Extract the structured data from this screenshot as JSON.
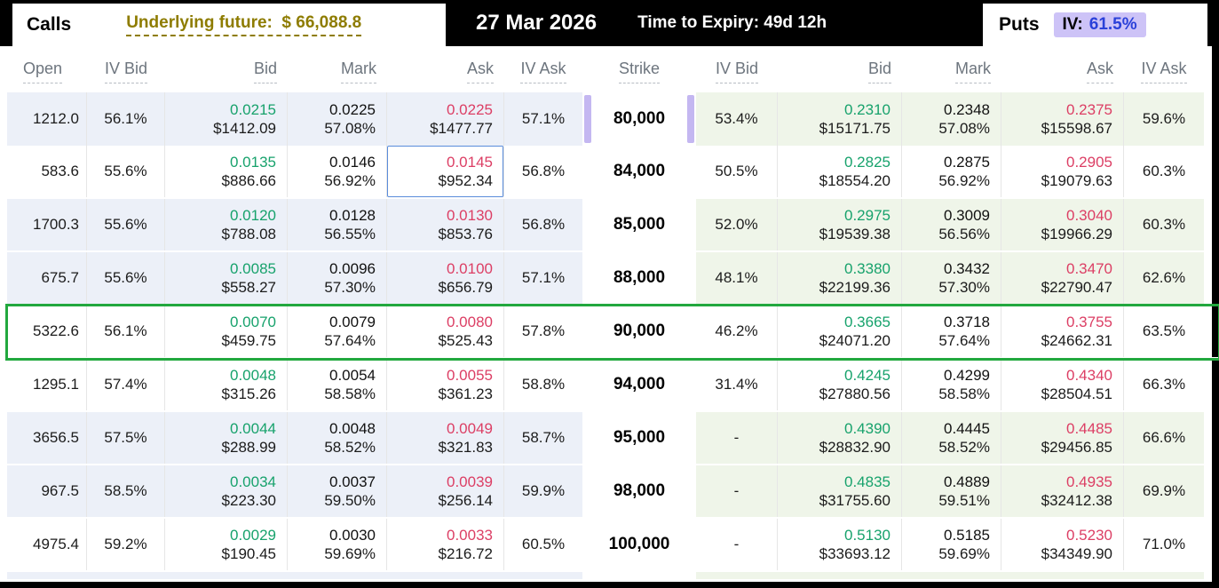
{
  "header": {
    "calls_label": "Calls",
    "underlying_future": "Underlying future:  $ 66,088.8",
    "date": "27 Mar 2026",
    "time_to_expiry": "Time to Expiry: 49d 12h",
    "puts_label": "Puts",
    "iv_label": "IV:",
    "iv_value": "61.5%"
  },
  "columns": {
    "calls": [
      "Open",
      "IV Bid",
      "Bid",
      "Mark",
      "Ask",
      "IV Ask"
    ],
    "strike": "Strike",
    "puts": [
      "IV Bid",
      "Bid",
      "Mark",
      "Ask",
      "IV Ask"
    ]
  },
  "colors": {
    "bid_green": "#17a26c",
    "ask_red": "#dc3e64",
    "iv_blue": "#2b41d9",
    "underlying_olive": "#8e7c00",
    "selected_row_green": "#22a83e",
    "selected_cell_blue": "#5a8cdb",
    "calls_row_tint": "#ecf0f8",
    "puts_row_tint": "#eff5e9",
    "iv_chip_lavender": "#cdc3f7",
    "strike_indicator_purple": "#c4b7f1"
  },
  "rows": [
    {
      "strike": "80,000",
      "shaded": true,
      "selected": false,
      "strike_indicator": true,
      "calls": {
        "open": "1212.0",
        "iv_bid": "56.1%",
        "bid": "0.0215",
        "bid_usd": "$1412.09",
        "mark": "0.0225",
        "mark_iv": "57.08%",
        "ask": "0.0225",
        "ask_usd": "$1477.77",
        "iv_ask": "57.1%",
        "ask_selected": false
      },
      "puts": {
        "iv_bid": "53.4%",
        "bid": "0.2310",
        "bid_usd": "$15171.75",
        "mark": "0.2348",
        "mark_iv": "57.08%",
        "ask": "0.2375",
        "ask_usd": "$15598.67",
        "iv_ask": "59.6%"
      }
    },
    {
      "strike": "84,000",
      "shaded": false,
      "selected": false,
      "strike_indicator": false,
      "calls": {
        "open": "583.6",
        "iv_bid": "55.6%",
        "bid": "0.0135",
        "bid_usd": "$886.66",
        "mark": "0.0146",
        "mark_iv": "56.92%",
        "ask": "0.0145",
        "ask_usd": "$952.34",
        "iv_ask": "56.8%",
        "ask_selected": true
      },
      "puts": {
        "iv_bid": "50.5%",
        "bid": "0.2825",
        "bid_usd": "$18554.20",
        "mark": "0.2875",
        "mark_iv": "56.92%",
        "ask": "0.2905",
        "ask_usd": "$19079.63",
        "iv_ask": "60.3%"
      }
    },
    {
      "strike": "85,000",
      "shaded": true,
      "selected": false,
      "strike_indicator": false,
      "calls": {
        "open": "1700.3",
        "iv_bid": "55.6%",
        "bid": "0.0120",
        "bid_usd": "$788.08",
        "mark": "0.0128",
        "mark_iv": "56.55%",
        "ask": "0.0130",
        "ask_usd": "$853.76",
        "iv_ask": "56.8%",
        "ask_selected": false
      },
      "puts": {
        "iv_bid": "52.0%",
        "bid": "0.2975",
        "bid_usd": "$19539.38",
        "mark": "0.3009",
        "mark_iv": "56.56%",
        "ask": "0.3040",
        "ask_usd": "$19966.29",
        "iv_ask": "60.3%"
      }
    },
    {
      "strike": "88,000",
      "shaded": true,
      "selected": false,
      "strike_indicator": false,
      "calls": {
        "open": "675.7",
        "iv_bid": "55.6%",
        "bid": "0.0085",
        "bid_usd": "$558.27",
        "mark": "0.0096",
        "mark_iv": "57.30%",
        "ask": "0.0100",
        "ask_usd": "$656.79",
        "iv_ask": "57.1%",
        "ask_selected": false
      },
      "puts": {
        "iv_bid": "48.1%",
        "bid": "0.3380",
        "bid_usd": "$22199.36",
        "mark": "0.3432",
        "mark_iv": "57.30%",
        "ask": "0.3470",
        "ask_usd": "$22790.47",
        "iv_ask": "62.6%"
      }
    },
    {
      "strike": "90,000",
      "shaded": false,
      "selected": true,
      "strike_indicator": false,
      "calls": {
        "open": "5322.6",
        "iv_bid": "56.1%",
        "bid": "0.0070",
        "bid_usd": "$459.75",
        "mark": "0.0079",
        "mark_iv": "57.64%",
        "ask": "0.0080",
        "ask_usd": "$525.43",
        "iv_ask": "57.8%",
        "ask_selected": false
      },
      "puts": {
        "iv_bid": "46.2%",
        "bid": "0.3665",
        "bid_usd": "$24071.20",
        "mark": "0.3718",
        "mark_iv": "57.64%",
        "ask": "0.3755",
        "ask_usd": "$24662.31",
        "iv_ask": "63.5%"
      }
    },
    {
      "strike": "94,000",
      "shaded": false,
      "selected": false,
      "strike_indicator": false,
      "calls": {
        "open": "1295.1",
        "iv_bid": "57.4%",
        "bid": "0.0048",
        "bid_usd": "$315.26",
        "mark": "0.0054",
        "mark_iv": "58.58%",
        "ask": "0.0055",
        "ask_usd": "$361.23",
        "iv_ask": "58.8%",
        "ask_selected": false
      },
      "puts": {
        "iv_bid": "31.4%",
        "bid": "0.4245",
        "bid_usd": "$27880.56",
        "mark": "0.4299",
        "mark_iv": "58.58%",
        "ask": "0.4340",
        "ask_usd": "$28504.51",
        "iv_ask": "66.3%"
      }
    },
    {
      "strike": "95,000",
      "shaded": true,
      "selected": false,
      "strike_indicator": false,
      "calls": {
        "open": "3656.5",
        "iv_bid": "57.5%",
        "bid": "0.0044",
        "bid_usd": "$288.99",
        "mark": "0.0048",
        "mark_iv": "58.52%",
        "ask": "0.0049",
        "ask_usd": "$321.83",
        "iv_ask": "58.7%",
        "ask_selected": false
      },
      "puts": {
        "iv_bid": "-",
        "bid": "0.4390",
        "bid_usd": "$28832.90",
        "mark": "0.4445",
        "mark_iv": "58.52%",
        "ask": "0.4485",
        "ask_usd": "$29456.85",
        "iv_ask": "66.6%"
      }
    },
    {
      "strike": "98,000",
      "shaded": true,
      "selected": false,
      "strike_indicator": false,
      "calls": {
        "open": "967.5",
        "iv_bid": "58.5%",
        "bid": "0.0034",
        "bid_usd": "$223.30",
        "mark": "0.0037",
        "mark_iv": "59.50%",
        "ask": "0.0039",
        "ask_usd": "$256.14",
        "iv_ask": "59.9%",
        "ask_selected": false
      },
      "puts": {
        "iv_bid": "-",
        "bid": "0.4835",
        "bid_usd": "$31755.60",
        "mark": "0.4889",
        "mark_iv": "59.51%",
        "ask": "0.4935",
        "ask_usd": "$32412.38",
        "iv_ask": "69.9%"
      }
    },
    {
      "strike": "100,000",
      "shaded": false,
      "selected": false,
      "strike_indicator": false,
      "calls": {
        "open": "4975.4",
        "iv_bid": "59.2%",
        "bid": "0.0029",
        "bid_usd": "$190.45",
        "mark": "0.0030",
        "mark_iv": "59.69%",
        "ask": "0.0033",
        "ask_usd": "$216.72",
        "iv_ask": "60.5%",
        "ask_selected": false
      },
      "puts": {
        "iv_bid": "-",
        "bid": "0.5130",
        "bid_usd": "$33693.12",
        "mark": "0.5185",
        "mark_iv": "59.69%",
        "ask": "0.5230",
        "ask_usd": "$34349.90",
        "iv_ask": "71.0%"
      }
    }
  ]
}
